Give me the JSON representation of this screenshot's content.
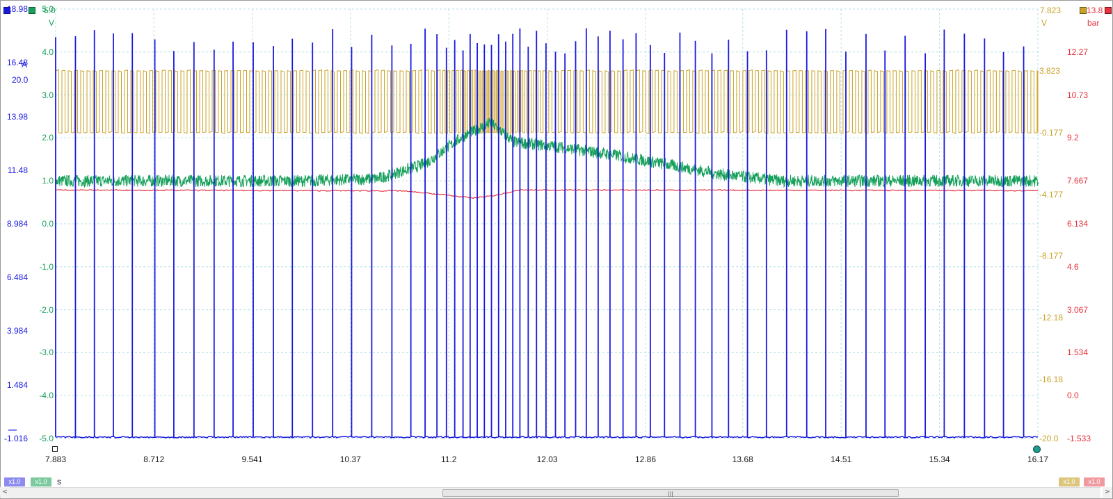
{
  "channels": {
    "blue": {
      "color": "#1a1adf",
      "unit": "A",
      "top": "20.0",
      "scale": "x1.0"
    },
    "green": {
      "color": "#16a05a",
      "unit": "V",
      "top": "5.0",
      "scale": "x1.0"
    },
    "gold": {
      "color": "#c9a227",
      "unit": "V",
      "top": "7.823",
      "scale": "x1.0"
    },
    "red": {
      "color": "#e8323c",
      "unit": "bar",
      "top": "13.8",
      "scale": "x1.0"
    }
  },
  "x_unit": "s",
  "cursor_line_symbol": "—",
  "scrollbar": {
    "grip": "|||",
    "left_arrow": "<",
    "right_arrow": ">"
  },
  "chart_data": {
    "type": "line",
    "x_ticks": [
      "7.883",
      "8.712",
      "9.541",
      "10.37",
      "11.2",
      "12.03",
      "12.86",
      "13.68",
      "14.51",
      "15.34",
      "16.17"
    ],
    "xlim": [
      7.883,
      16.17
    ],
    "grid": true,
    "axes": {
      "green_V": {
        "ticks": [
          "5.0",
          "4.0",
          "3.0",
          "2.0",
          "1.0",
          "0.0",
          "-1.0",
          "-2.0",
          "-3.0",
          "-4.0",
          "-5.0"
        ],
        "ylim": [
          -5.0,
          5.0
        ]
      },
      "blue_A": {
        "ticks": [
          "18.98",
          "16.48",
          "13.98",
          "11.48",
          "8.984",
          "6.484",
          "3.984",
          "1.484",
          "-1.016"
        ],
        "ylim": [
          -1.016,
          18.98
        ]
      },
      "gold_V": {
        "ticks": [
          "3.823",
          "-0.177",
          "-4.177",
          "-8.177",
          "-12.18",
          "-16.18",
          "-20.0"
        ],
        "ylim": [
          -20.0,
          7.823
        ]
      },
      "red_bar": {
        "ticks": [
          "12.27",
          "10.73",
          "9.2",
          "7.667",
          "6.134",
          "4.6",
          "3.067",
          "1.534",
          "0.0",
          "-1.533"
        ],
        "ylim": [
          -1.533,
          13.8
        ]
      }
    },
    "series": [
      {
        "axis": "gold_V",
        "color": "#c9a227",
        "pattern": "square pulse train",
        "low": -0.177,
        "high": 3.823,
        "note_points_x": [
          7.883,
          11.2,
          11.55,
          12.0,
          16.17
        ]
      },
      {
        "axis": "green_V",
        "color": "#16a05a",
        "pattern": "noisy signal with hump",
        "x": [
          7.883,
          10.0,
          10.6,
          11.0,
          11.3,
          11.55,
          11.75,
          12.1,
          12.6,
          13.0,
          13.5,
          14.0,
          16.17
        ],
        "y": [
          1.0,
          1.0,
          1.05,
          1.4,
          2.0,
          2.35,
          1.9,
          1.8,
          1.6,
          1.4,
          1.15,
          1.0,
          1.0
        ]
      },
      {
        "axis": "red_bar",
        "color": "#e8323c",
        "pattern": "flat with dip",
        "x": [
          7.883,
          10.8,
          11.2,
          11.4,
          11.6,
          11.8,
          16.17
        ],
        "y": [
          7.34,
          7.31,
          7.15,
          7.05,
          7.15,
          7.34,
          7.32
        ]
      },
      {
        "axis": "blue_A",
        "color": "#1a1adf",
        "pattern": "spike train",
        "baseline": -0.95,
        "peak": 17.5,
        "spike_x": [
          7.883,
          8.05,
          8.21,
          8.37,
          8.53,
          8.72,
          8.88,
          9.05,
          9.22,
          9.38,
          9.55,
          9.72,
          9.88,
          10.05,
          10.22,
          10.38,
          10.55,
          10.72,
          10.88,
          11.0,
          11.1,
          11.18,
          11.25,
          11.32,
          11.38,
          11.44,
          11.5,
          11.56,
          11.62,
          11.68,
          11.74,
          11.8,
          11.87,
          11.94,
          12.02,
          12.1,
          12.18,
          12.27,
          12.36,
          12.46,
          12.56,
          12.67,
          12.78,
          12.9,
          13.02,
          13.15,
          13.28,
          13.42,
          13.56,
          13.72,
          13.88,
          14.05,
          14.22,
          14.38,
          14.55,
          14.72,
          14.88,
          15.05,
          15.22,
          15.38,
          15.55,
          15.72,
          15.88,
          16.05
        ]
      }
    ]
  }
}
